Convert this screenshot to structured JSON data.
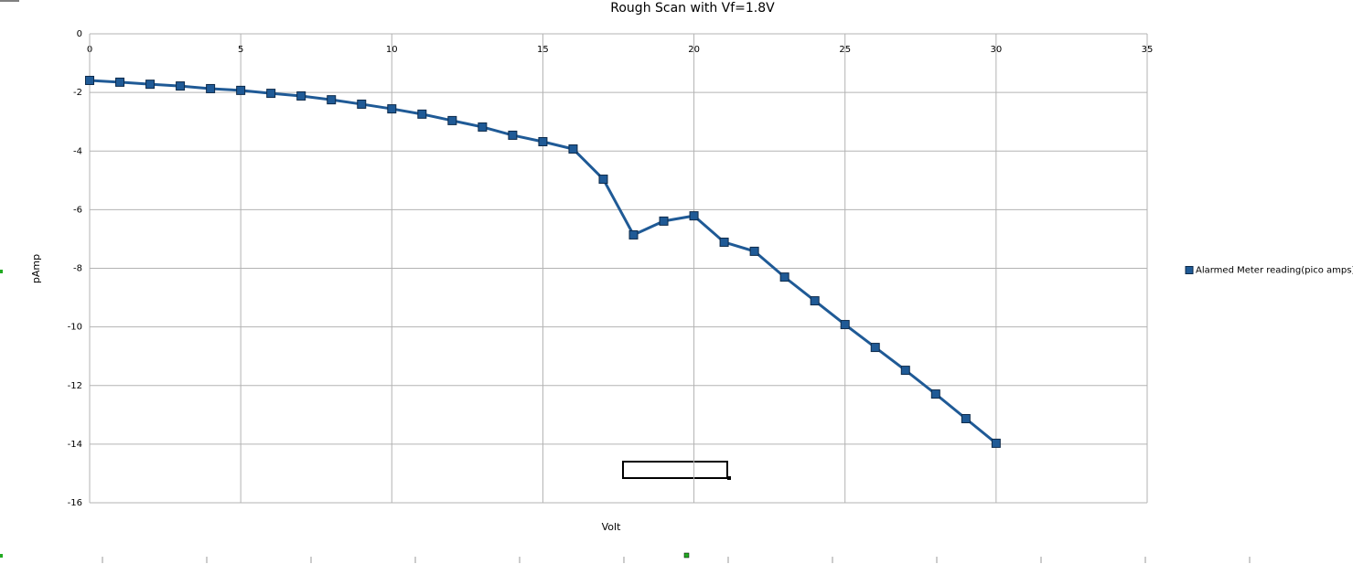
{
  "chart_data": {
    "type": "line",
    "title": "Rough Scan with Vf=1.8V",
    "x_label": "Volt",
    "y_label": "pAmp",
    "x": [
      0,
      1,
      2,
      3,
      4,
      5,
      6,
      7,
      8,
      9,
      10,
      11,
      12,
      13,
      14,
      15,
      16,
      17,
      18,
      19,
      20,
      21,
      22,
      23,
      24,
      25,
      26,
      27,
      28,
      29,
      30
    ],
    "series": [
      {
        "name": "Alarmed Meter reading(pico amps)",
        "color": "#1f5a96",
        "values": [
          -1.59,
          -1.65,
          -1.72,
          -1.78,
          -1.87,
          -1.93,
          -2.03,
          -2.12,
          -2.25,
          -2.4,
          -2.56,
          -2.74,
          -2.96,
          -3.18,
          -3.46,
          -3.68,
          -3.93,
          -4.96,
          -6.86,
          -6.39,
          -6.21,
          -7.11,
          -7.42,
          -8.3,
          -9.11,
          -9.92,
          -10.7,
          -11.48,
          -12.29,
          -13.13,
          -13.97
        ]
      }
    ],
    "xlim": [
      0,
      35
    ],
    "xticks": [
      0,
      5,
      10,
      15,
      20,
      25,
      30,
      35
    ],
    "ylim": [
      -16,
      0
    ],
    "yticks": [
      -16,
      -14,
      -12,
      -10,
      -8,
      -6,
      -4,
      -2,
      0
    ],
    "grid": true,
    "legend": "right"
  }
}
